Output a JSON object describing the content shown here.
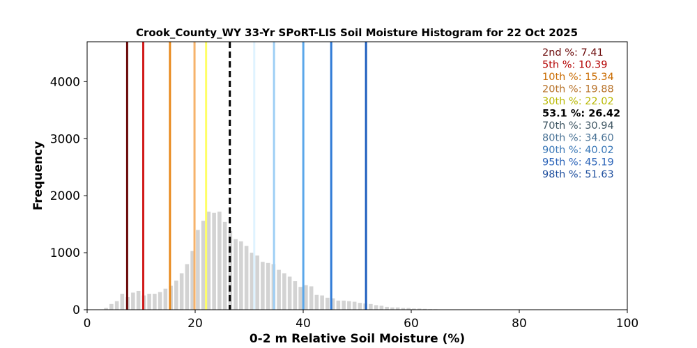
{
  "chart_data": {
    "type": "bar",
    "title": "Crook_County_WY 33-Yr SPoRT-LIS Soil Moisture Histogram for 22 Oct 2025",
    "xlabel": "0-2 m Relative Soil Moisture (%)",
    "ylabel": "Frequency",
    "xlim": [
      0,
      100
    ],
    "ylim": [
      0,
      4700
    ],
    "xticks": [
      0,
      20,
      40,
      60,
      80,
      100
    ],
    "yticks": [
      0,
      1000,
      2000,
      3000,
      4000
    ],
    "grid": false,
    "bar_color": "#d3d3d3",
    "bins": [
      {
        "x": 3.5,
        "y": 30
      },
      {
        "x": 4.5,
        "y": 100
      },
      {
        "x": 5.5,
        "y": 150
      },
      {
        "x": 6.5,
        "y": 280
      },
      {
        "x": 7.5,
        "y": 220
      },
      {
        "x": 8.5,
        "y": 300
      },
      {
        "x": 9.5,
        "y": 330
      },
      {
        "x": 10.5,
        "y": 250
      },
      {
        "x": 11.5,
        "y": 280
      },
      {
        "x": 12.5,
        "y": 280
      },
      {
        "x": 13.5,
        "y": 310
      },
      {
        "x": 14.5,
        "y": 370
      },
      {
        "x": 15.5,
        "y": 420
      },
      {
        "x": 16.5,
        "y": 510
      },
      {
        "x": 17.5,
        "y": 640
      },
      {
        "x": 18.5,
        "y": 800
      },
      {
        "x": 19.5,
        "y": 1030
      },
      {
        "x": 20.5,
        "y": 1400
      },
      {
        "x": 21.5,
        "y": 1560
      },
      {
        "x": 22.5,
        "y": 1720
      },
      {
        "x": 23.5,
        "y": 1700
      },
      {
        "x": 24.5,
        "y": 1720
      },
      {
        "x": 25.5,
        "y": 1540
      },
      {
        "x": 26.5,
        "y": 1380
      },
      {
        "x": 27.5,
        "y": 1240
      },
      {
        "x": 28.5,
        "y": 1200
      },
      {
        "x": 29.5,
        "y": 1120
      },
      {
        "x": 30.5,
        "y": 1000
      },
      {
        "x": 31.5,
        "y": 950
      },
      {
        "x": 32.5,
        "y": 840
      },
      {
        "x": 33.5,
        "y": 820
      },
      {
        "x": 34.5,
        "y": 800
      },
      {
        "x": 35.5,
        "y": 700
      },
      {
        "x": 36.5,
        "y": 640
      },
      {
        "x": 37.5,
        "y": 580
      },
      {
        "x": 38.5,
        "y": 500
      },
      {
        "x": 39.5,
        "y": 400
      },
      {
        "x": 40.5,
        "y": 430
      },
      {
        "x": 41.5,
        "y": 410
      },
      {
        "x": 42.5,
        "y": 260
      },
      {
        "x": 43.5,
        "y": 250
      },
      {
        "x": 44.5,
        "y": 210
      },
      {
        "x": 45.5,
        "y": 200
      },
      {
        "x": 46.5,
        "y": 160
      },
      {
        "x": 47.5,
        "y": 160
      },
      {
        "x": 48.5,
        "y": 150
      },
      {
        "x": 49.5,
        "y": 140
      },
      {
        "x": 50.5,
        "y": 120
      },
      {
        "x": 51.5,
        "y": 110
      },
      {
        "x": 52.5,
        "y": 100
      },
      {
        "x": 53.5,
        "y": 80
      },
      {
        "x": 54.5,
        "y": 70
      },
      {
        "x": 55.5,
        "y": 50
      },
      {
        "x": 56.5,
        "y": 40
      },
      {
        "x": 57.5,
        "y": 40
      },
      {
        "x": 58.5,
        "y": 30
      },
      {
        "x": 59.5,
        "y": 30
      },
      {
        "x": 60.5,
        "y": 20
      },
      {
        "x": 61.5,
        "y": 20
      },
      {
        "x": 62.5,
        "y": 15
      },
      {
        "x": 63.5,
        "y": 10
      },
      {
        "x": 64.5,
        "y": 8
      }
    ],
    "bin_width": 1.0,
    "bar_fill_fraction": 0.72,
    "percentile_lines": [
      {
        "label": "2nd %: 7.41",
        "value": 7.41,
        "color": "#6b0a0a",
        "dashed": false
      },
      {
        "label": "5th %: 10.39",
        "value": 10.39,
        "color": "#d11a1a",
        "dashed": false
      },
      {
        "label": "10th %: 15.34",
        "value": 15.34,
        "color": "#e8891c",
        "dashed": false
      },
      {
        "label": "20th %: 19.88",
        "value": 19.88,
        "color": "#f6b26b",
        "dashed": false
      },
      {
        "label": "30th %: 22.02",
        "value": 22.02,
        "color": "#ffff66",
        "dashed": false
      },
      {
        "label": "53.1 %: 26.42",
        "value": 26.42,
        "color": "#000000",
        "dashed": true
      },
      {
        "label": "70th %: 30.94",
        "value": 30.94,
        "color": "#dff3ff",
        "dashed": false
      },
      {
        "label": "80th %: 34.60",
        "value": 34.6,
        "color": "#9fcff5",
        "dashed": false
      },
      {
        "label": "90th %: 40.02",
        "value": 40.02,
        "color": "#5aa7ea",
        "dashed": false
      },
      {
        "label": "95th %: 45.19",
        "value": 45.19,
        "color": "#2f7ad6",
        "dashed": false
      },
      {
        "label": "98th %: 51.63",
        "value": 51.63,
        "color": "#1f5fbf",
        "dashed": false
      }
    ],
    "legend_placement": "top-right",
    "legend_text_colors": [
      "#6b0a0a",
      "#b30000",
      "#c96b00",
      "#b8732a",
      "#b8b800",
      "#000000",
      "#3f5663",
      "#4a7396",
      "#3a78b8",
      "#2a63b8",
      "#1f4f9e"
    ]
  }
}
